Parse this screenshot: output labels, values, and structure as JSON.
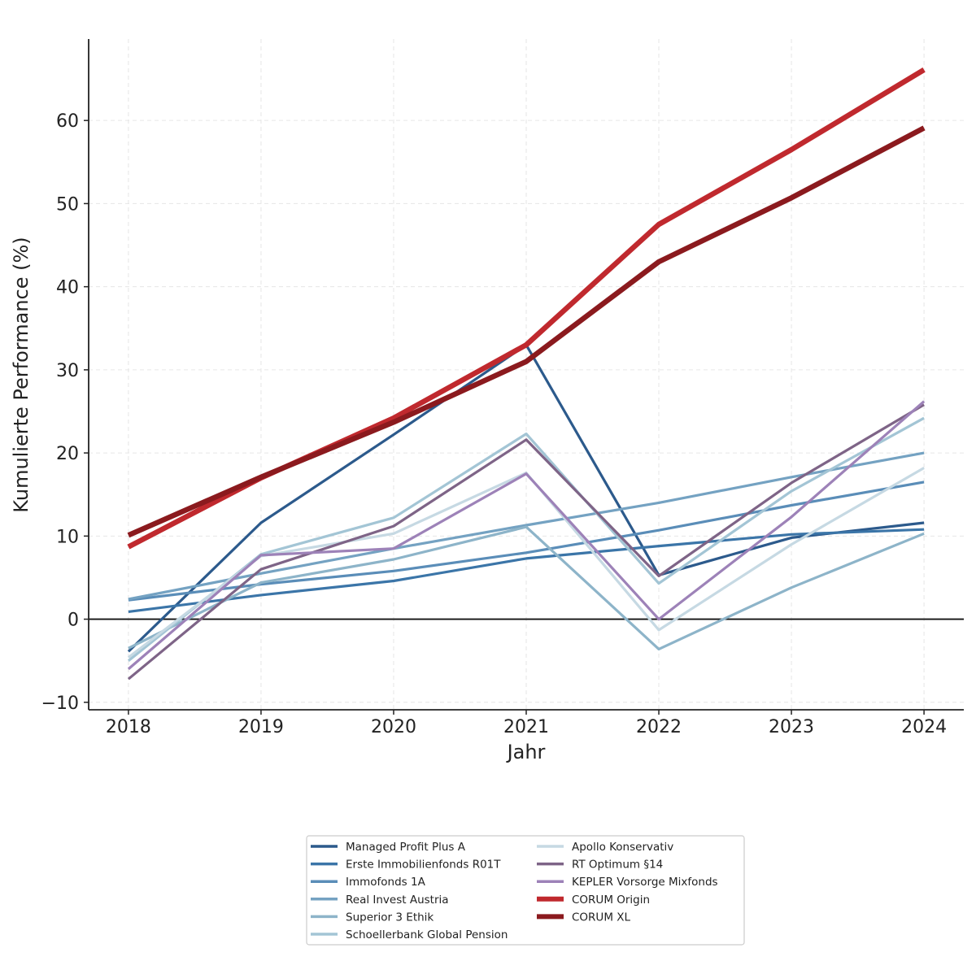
{
  "chart_data": {
    "type": "line",
    "title": "",
    "xlabel": "Jahr",
    "ylabel": "Kumulierte Performance (%)",
    "x": [
      2018,
      2019,
      2020,
      2021,
      2022,
      2023,
      2024
    ],
    "xlim": [
      2017.7,
      2024.3
    ],
    "ylim": [
      -10.9,
      69.8
    ],
    "yticks": [
      -10,
      0,
      10,
      20,
      30,
      40,
      50,
      60
    ],
    "ytick_labels": [
      "−10",
      "0",
      "10",
      "20",
      "30",
      "40",
      "50",
      "60"
    ],
    "xtick_labels": [
      "2018",
      "2019",
      "2020",
      "2021",
      "2022",
      "2023",
      "2024"
    ],
    "grid": true,
    "zero_line": true,
    "legend_placement": "bottom-center",
    "series": [
      {
        "name": "Managed Profit Plus A",
        "color": "#2c5a8c",
        "width": "thin",
        "values": [
          -3.9,
          11.6,
          22.2,
          33.0,
          5.3,
          9.8,
          11.6
        ]
      },
      {
        "name": "Erste Immobilienfonds R01T",
        "color": "#3b75a8",
        "width": "thin",
        "values": [
          0.9,
          2.9,
          4.6,
          7.3,
          8.8,
          10.2,
          10.8
        ]
      },
      {
        "name": "Immofonds 1A",
        "color": "#5a8db8",
        "width": "thin",
        "values": [
          2.3,
          4.2,
          5.8,
          8.0,
          10.7,
          13.7,
          16.5
        ]
      },
      {
        "name": "Real Invest Austria",
        "color": "#74a2c2",
        "width": "thin",
        "values": [
          2.4,
          5.5,
          8.5,
          11.3,
          14.0,
          17.1,
          20.0
        ]
      },
      {
        "name": "Superior 3 Ethik",
        "color": "#8db4c9",
        "width": "thin",
        "values": [
          -3.5,
          4.4,
          7.2,
          11.1,
          -3.6,
          3.8,
          10.3
        ]
      },
      {
        "name": "Schoellerbank Global Pension",
        "color": "#a3c5d5",
        "width": "thin",
        "values": [
          -5.0,
          7.8,
          12.2,
          22.3,
          4.3,
          15.4,
          24.2
        ]
      },
      {
        "name": "Apollo Konservativ",
        "color": "#c6d9e3",
        "width": "thin",
        "values": [
          -4.6,
          7.6,
          10.3,
          17.6,
          -1.3,
          9.0,
          18.2
        ]
      },
      {
        "name": "RT Optimum §14",
        "color": "#7e6487",
        "width": "thin",
        "values": [
          -7.2,
          6.0,
          11.2,
          21.6,
          5.2,
          16.4,
          25.8
        ]
      },
      {
        "name": "KEPLER Vorsorge Mixfonds",
        "color": "#9d82b8",
        "width": "thin",
        "values": [
          -6.0,
          7.7,
          8.5,
          17.5,
          0.0,
          12.3,
          26.2
        ]
      },
      {
        "name": "CORUM Origin",
        "color": "#c0292e",
        "width": "thick",
        "values": [
          8.7,
          17.0,
          24.2,
          33.0,
          47.5,
          56.5,
          66.1
        ]
      },
      {
        "name": "CORUM XL",
        "color": "#8b1a1e",
        "width": "thick",
        "values": [
          10.1,
          17.1,
          23.7,
          31.0,
          43.0,
          50.7,
          59.1
        ]
      }
    ]
  }
}
